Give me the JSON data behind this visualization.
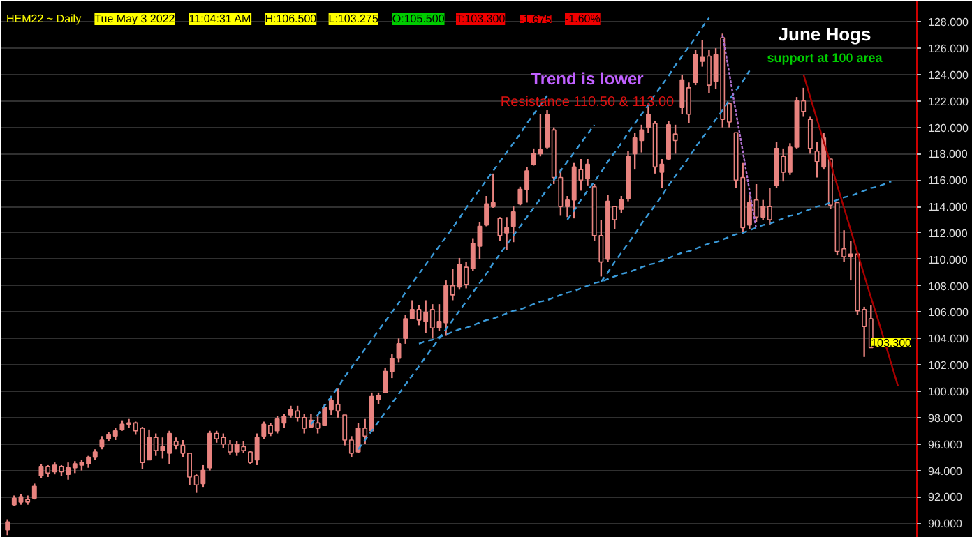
{
  "chart_data": {
    "type": "candlestick",
    "color": "#e8837f",
    "categories": [
      null,
      null,
      null,
      null,
      null,
      null,
      null,
      null,
      null,
      null,
      null,
      null,
      null,
      null,
      null,
      null,
      null,
      null,
      null,
      null,
      null,
      null,
      null,
      null,
      null,
      null,
      null,
      null,
      null,
      null,
      null,
      null,
      null,
      null,
      null,
      null,
      null,
      null,
      null,
      null,
      null,
      null,
      null,
      null,
      null,
      null,
      null,
      null,
      null,
      null,
      null,
      null,
      null,
      null,
      null,
      null,
      null,
      null,
      null,
      null,
      null,
      null,
      null,
      null,
      null,
      null,
      null,
      null,
      null,
      null,
      null,
      null,
      null,
      null,
      null,
      null,
      null,
      null,
      null,
      null,
      null,
      null,
      null,
      null,
      null,
      null,
      null,
      null,
      null,
      null,
      null,
      null,
      null,
      null,
      null,
      null,
      null,
      null,
      null,
      null,
      null,
      null,
      null,
      null,
      null,
      null,
      null,
      null,
      null,
      null,
      null,
      null,
      null,
      null,
      null,
      null,
      null,
      null,
      null,
      null,
      null,
      null,
      null,
      null,
      null,
      null,
      null,
      null,
      null,
      null,
      null,
      null,
      null
    ],
    "ohlc": [
      [
        89.5,
        90.3,
        89.1,
        90.1
      ],
      [
        91.4,
        92.1,
        91.3,
        91.9
      ],
      [
        91.6,
        92.2,
        91.4,
        92.0
      ],
      [
        91.8,
        92.1,
        91.4,
        91.6
      ],
      [
        91.9,
        93.0,
        91.8,
        92.8
      ],
      [
        93.6,
        94.5,
        93.4,
        94.3
      ],
      [
        94.3,
        94.4,
        93.5,
        93.8
      ],
      [
        93.9,
        94.6,
        93.7,
        94.4
      ],
      [
        94.3,
        94.4,
        93.6,
        93.9
      ],
      [
        93.7,
        94.6,
        93.3,
        94.2
      ],
      [
        94.2,
        94.7,
        93.8,
        94.5
      ],
      [
        94.4,
        94.8,
        94.0,
        94.6
      ],
      [
        94.5,
        95.1,
        94.2,
        95.0
      ],
      [
        95.0,
        95.6,
        94.8,
        95.4
      ],
      [
        95.8,
        96.6,
        95.6,
        96.3
      ],
      [
        96.4,
        96.9,
        96.2,
        96.7
      ],
      [
        96.6,
        97.2,
        96.3,
        97.0
      ],
      [
        97.1,
        97.8,
        97.0,
        97.5
      ],
      [
        97.5,
        97.9,
        97.2,
        97.6
      ],
      [
        97.6,
        97.7,
        96.7,
        97.0
      ],
      [
        97.2,
        97.3,
        94.1,
        94.6
      ],
      [
        94.8,
        97.1,
        94.8,
        96.5
      ],
      [
        96.5,
        96.8,
        95.1,
        95.5
      ],
      [
        95.5,
        96.5,
        94.9,
        95.8
      ],
      [
        95.3,
        97.0,
        94.5,
        96.8
      ],
      [
        96.2,
        96.5,
        95.6,
        95.9
      ],
      [
        95.9,
        96.3,
        95.0,
        95.3
      ],
      [
        95.3,
        95.3,
        92.9,
        93.5
      ],
      [
        93.6,
        93.7,
        92.3,
        92.9
      ],
      [
        93.0,
        94.4,
        92.7,
        94.0
      ],
      [
        94.2,
        97.0,
        94.0,
        96.8
      ],
      [
        96.8,
        97.0,
        96.1,
        96.4
      ],
      [
        96.5,
        96.8,
        95.7,
        96.0
      ],
      [
        96.0,
        96.3,
        95.2,
        95.4
      ],
      [
        95.4,
        96.2,
        95.1,
        96.0
      ],
      [
        95.8,
        96.2,
        95.3,
        95.5
      ],
      [
        95.4,
        95.5,
        94.5,
        94.6
      ],
      [
        94.8,
        96.8,
        94.4,
        96.5
      ],
      [
        96.6,
        97.7,
        96.4,
        97.5
      ],
      [
        97.4,
        97.6,
        96.6,
        96.8
      ],
      [
        97.0,
        98.1,
        96.8,
        97.9
      ],
      [
        97.6,
        98.3,
        97.2,
        98.1
      ],
      [
        98.2,
        98.9,
        98.0,
        98.6
      ],
      [
        98.5,
        98.9,
        97.7,
        98.0
      ],
      [
        98.0,
        98.3,
        96.8,
        97.2
      ],
      [
        97.3,
        98.3,
        97.2,
        97.8
      ],
      [
        97.6,
        98.3,
        96.8,
        97.2
      ],
      [
        97.4,
        99.0,
        97.4,
        98.8
      ],
      [
        98.6,
        99.6,
        98.2,
        99.3
      ],
      [
        99.0,
        100.2,
        98.0,
        98.5
      ],
      [
        98.2,
        98.2,
        95.9,
        96.3
      ],
      [
        96.3,
        96.6,
        95.0,
        95.3
      ],
      [
        95.4,
        97.6,
        95.3,
        97.2
      ],
      [
        97.2,
        97.9,
        96.0,
        96.6
      ],
      [
        97.0,
        99.9,
        97.0,
        99.6
      ],
      [
        99.4,
        99.9,
        99.0,
        99.7
      ],
      [
        99.9,
        101.8,
        99.9,
        101.5
      ],
      [
        101.5,
        102.8,
        101.0,
        102.5
      ],
      [
        102.5,
        104.0,
        102.2,
        103.6
      ],
      [
        104.0,
        105.8,
        103.6,
        105.5
      ],
      [
        105.5,
        106.9,
        105.5,
        106.2
      ],
      [
        106.2,
        106.5,
        105.0,
        105.4
      ],
      [
        105.3,
        106.9,
        104.4,
        106.0
      ],
      [
        106.2,
        106.6,
        104.0,
        104.8
      ],
      [
        104.8,
        106.6,
        104.6,
        105.3
      ],
      [
        105.2,
        108.4,
        104.2,
        108.0
      ],
      [
        108.0,
        109.3,
        106.9,
        107.3
      ],
      [
        107.9,
        110.1,
        107.7,
        109.6
      ],
      [
        109.4,
        109.8,
        107.8,
        108.1
      ],
      [
        109.3,
        111.6,
        109.1,
        111.2
      ],
      [
        111.0,
        112.8,
        110.0,
        112.5
      ],
      [
        112.6,
        114.8,
        112.5,
        114.2
      ],
      [
        114.0,
        116.5,
        113.9,
        114.3
      ],
      [
        113.1,
        113.2,
        111.4,
        111.8
      ],
      [
        112.0,
        113.2,
        110.7,
        112.4
      ],
      [
        112.5,
        114.0,
        111.3,
        113.6
      ],
      [
        114.2,
        115.5,
        114.1,
        115.3
      ],
      [
        115.3,
        117.0,
        114.3,
        116.7
      ],
      [
        117.2,
        118.4,
        117.1,
        118.0
      ],
      [
        118.0,
        121.0,
        117.8,
        118.3
      ],
      [
        118.5,
        121.3,
        118.4,
        121.0
      ],
      [
        119.8,
        120.0,
        115.7,
        116.2
      ],
      [
        116.2,
        116.8,
        113.3,
        114.0
      ],
      [
        114.0,
        114.8,
        113.2,
        114.5
      ],
      [
        114.5,
        117.3,
        113.1,
        117.0
      ],
      [
        116.8,
        117.6,
        115.2,
        116.0
      ],
      [
        116.1,
        117.6,
        115.6,
        117.2
      ],
      [
        115.5,
        115.7,
        111.4,
        111.8
      ],
      [
        111.8,
        113.0,
        108.7,
        109.8
      ],
      [
        110.0,
        114.9,
        109.8,
        114.4
      ],
      [
        114.0,
        114.0,
        112.3,
        113.0
      ],
      [
        113.8,
        114.8,
        113.5,
        114.5
      ],
      [
        114.6,
        118.2,
        114.4,
        117.8
      ],
      [
        118.0,
        119.6,
        116.8,
        119.2
      ],
      [
        119.0,
        120.2,
        118.1,
        119.8
      ],
      [
        120.0,
        121.6,
        119.6,
        121.0
      ],
      [
        120.3,
        120.5,
        116.5,
        117.0
      ],
      [
        116.6,
        117.6,
        115.4,
        117.2
      ],
      [
        117.6,
        120.5,
        117.5,
        120.2
      ],
      [
        119.5,
        120.2,
        118.0,
        119.0
      ],
      [
        121.5,
        124.0,
        121.0,
        123.6
      ],
      [
        123.0,
        123.4,
        120.3,
        121.0
      ],
      [
        123.4,
        125.9,
        123.2,
        125.5
      ],
      [
        125.0,
        126.6,
        124.6,
        125.3
      ],
      [
        125.4,
        125.9,
        122.6,
        123.2
      ],
      [
        123.5,
        126.0,
        122.9,
        125.5
      ],
      [
        126.8,
        127.1,
        120.0,
        120.6
      ],
      [
        121.8,
        121.9,
        120.0,
        120.4
      ],
      [
        119.6,
        119.6,
        115.4,
        116.0
      ],
      [
        116.2,
        117.3,
        112.0,
        112.4
      ],
      [
        112.6,
        114.9,
        112.3,
        114.3
      ],
      [
        114.5,
        115.7,
        112.8,
        113.2
      ],
      [
        113.2,
        114.5,
        113.0,
        114.0
      ],
      [
        114.0,
        115.4,
        112.6,
        113.0
      ],
      [
        115.6,
        118.9,
        115.4,
        118.4
      ],
      [
        117.8,
        118.4,
        115.9,
        116.6
      ],
      [
        116.6,
        118.8,
        116.4,
        118.5
      ],
      [
        118.5,
        122.3,
        118.4,
        122.0
      ],
      [
        122.0,
        123.0,
        120.8,
        121.2
      ],
      [
        120.6,
        120.8,
        118.0,
        118.4
      ],
      [
        118.2,
        118.9,
        116.2,
        117.4
      ],
      [
        117.0,
        119.6,
        116.8,
        119.2
      ],
      [
        117.6,
        117.6,
        113.8,
        114.1
      ],
      [
        114.3,
        114.3,
        110.3,
        110.6
      ],
      [
        110.8,
        112.2,
        109.8,
        110.2
      ],
      [
        110.2,
        111.4,
        108.4,
        110.4
      ],
      [
        110.4,
        110.5,
        105.8,
        106.1
      ],
      [
        106.2,
        106.4,
        102.6,
        104.9
      ],
      [
        105.5,
        106.5,
        103.275,
        103.3
      ],
      null,
      null,
      null,
      null
    ],
    "series": [
      {
        "type": "line",
        "color": "#3a9ad9",
        "line_style": "dashed",
        "values": [
          null,
          null,
          null,
          null,
          null,
          null,
          null,
          null,
          null,
          null,
          null,
          null,
          null,
          null,
          null,
          null,
          null,
          null,
          null,
          null,
          null,
          null,
          null,
          null,
          null,
          null,
          null,
          null,
          null,
          null,
          null,
          null,
          null,
          null,
          null,
          null,
          null,
          null,
          null,
          null,
          null,
          null,
          null,
          null,
          null,
          97.5,
          98.2,
          98.9,
          99.6,
          100.3,
          101.1,
          101.8,
          102.5,
          103.2,
          103.9,
          104.6,
          105.3,
          106.0,
          106.7,
          107.5,
          108.2,
          108.9,
          109.6,
          110.3,
          111.0,
          111.7,
          112.4,
          113.1,
          113.9,
          114.6,
          115.3,
          116.0,
          116.7,
          117.4,
          118.1,
          118.8,
          119.5,
          120.3,
          121.0,
          121.7,
          122.4,
          null,
          null,
          null,
          null,
          null,
          null,
          null,
          null,
          null,
          null,
          null,
          null,
          null,
          null,
          null,
          null,
          null,
          null,
          null,
          null,
          null,
          null,
          null,
          null,
          null,
          null,
          null,
          null,
          null,
          null,
          null,
          null,
          null,
          null,
          null,
          null,
          null,
          null,
          null,
          null,
          null,
          null,
          null,
          null,
          null,
          null,
          null,
          null,
          null,
          null,
          null,
          null
        ]
      },
      {
        "type": "line",
        "color": "#3a9ad9",
        "line_style": "dashed",
        "values": [
          null,
          null,
          null,
          null,
          null,
          null,
          null,
          null,
          null,
          null,
          null,
          null,
          null,
          null,
          null,
          null,
          null,
          null,
          null,
          null,
          null,
          null,
          null,
          null,
          null,
          null,
          null,
          null,
          null,
          null,
          null,
          null,
          null,
          null,
          null,
          null,
          null,
          null,
          null,
          null,
          null,
          null,
          null,
          null,
          null,
          null,
          null,
          null,
          null,
          null,
          null,
          null,
          95.6,
          96.3,
          97.0,
          97.7,
          98.4,
          99.1,
          99.8,
          100.5,
          101.2,
          101.9,
          102.6,
          103.3,
          104.0,
          104.7,
          105.4,
          106.1,
          106.8,
          107.5,
          108.2,
          108.9,
          109.7,
          110.4,
          111.1,
          111.8,
          112.5,
          113.2,
          113.9,
          114.6,
          115.3,
          116.0,
          116.7,
          117.4,
          118.1,
          118.8,
          119.5,
          120.2,
          null,
          null,
          null,
          null,
          null,
          null,
          null,
          null,
          null,
          null,
          null,
          null,
          null,
          null,
          null,
          null,
          null,
          null,
          null,
          null,
          null,
          null,
          null,
          null,
          null,
          null,
          null,
          null,
          null,
          null,
          null,
          null,
          null,
          null,
          null,
          null,
          null,
          null,
          null,
          null,
          null,
          null,
          null,
          null,
          null
        ]
      },
      {
        "type": "line",
        "color": "#3a9ad9",
        "line_style": "dashed",
        "values": [
          null,
          null,
          null,
          null,
          null,
          null,
          null,
          null,
          null,
          null,
          null,
          null,
          null,
          null,
          null,
          null,
          null,
          null,
          null,
          null,
          null,
          null,
          null,
          null,
          null,
          null,
          null,
          null,
          null,
          null,
          null,
          null,
          null,
          null,
          null,
          null,
          null,
          null,
          null,
          null,
          null,
          null,
          null,
          null,
          null,
          null,
          null,
          null,
          null,
          null,
          null,
          null,
          null,
          null,
          null,
          null,
          null,
          null,
          null,
          null,
          null,
          null,
          null,
          null,
          null,
          null,
          null,
          null,
          null,
          null,
          null,
          null,
          null,
          null,
          null,
          null,
          null,
          null,
          null,
          null,
          null,
          null,
          null,
          113.0,
          113.7,
          114.5,
          115.2,
          115.9,
          116.6,
          117.4,
          118.1,
          118.8,
          119.6,
          120.3,
          121.0,
          121.7,
          122.5,
          123.2,
          123.9,
          124.7,
          125.4,
          126.1,
          126.8,
          127.6,
          128.3,
          null,
          null,
          null,
          null,
          null,
          null,
          null,
          null,
          null,
          null,
          null,
          null,
          null,
          null,
          null,
          null,
          null,
          null,
          null,
          null,
          null,
          null,
          null,
          null,
          null,
          null,
          null,
          null
        ]
      },
      {
        "type": "line",
        "color": "#3a9ad9",
        "line_style": "dashed",
        "values": [
          null,
          null,
          null,
          null,
          null,
          null,
          null,
          null,
          null,
          null,
          null,
          null,
          null,
          null,
          null,
          null,
          null,
          null,
          null,
          null,
          null,
          null,
          null,
          null,
          null,
          null,
          null,
          null,
          null,
          null,
          null,
          null,
          null,
          null,
          null,
          null,
          null,
          null,
          null,
          null,
          null,
          null,
          null,
          null,
          null,
          null,
          null,
          null,
          null,
          null,
          null,
          null,
          null,
          null,
          null,
          null,
          null,
          null,
          null,
          null,
          null,
          null,
          null,
          null,
          null,
          null,
          null,
          null,
          null,
          null,
          null,
          null,
          null,
          null,
          null,
          null,
          null,
          null,
          null,
          null,
          null,
          null,
          null,
          null,
          null,
          null,
          null,
          null,
          108.3,
          109.0,
          109.8,
          110.5,
          111.2,
          111.9,
          112.7,
          113.4,
          114.1,
          114.8,
          115.6,
          116.3,
          117.0,
          117.7,
          118.5,
          119.2,
          119.9,
          120.6,
          121.3,
          122.1,
          122.8,
          123.5,
          124.3,
          null,
          null,
          null,
          null,
          null,
          null,
          null,
          null,
          null,
          null,
          null,
          null,
          null,
          null,
          null,
          null,
          null,
          null,
          null,
          null,
          null,
          null
        ]
      },
      {
        "type": "line",
        "color": "#3a9ad9",
        "line_style": "dashed",
        "values": [
          null,
          null,
          null,
          null,
          null,
          null,
          null,
          null,
          null,
          null,
          null,
          null,
          null,
          null,
          null,
          null,
          null,
          null,
          null,
          null,
          null,
          null,
          null,
          null,
          null,
          null,
          null,
          null,
          null,
          null,
          null,
          null,
          null,
          null,
          null,
          null,
          null,
          null,
          null,
          null,
          null,
          null,
          null,
          null,
          null,
          null,
          null,
          null,
          null,
          null,
          null,
          null,
          null,
          null,
          null,
          null,
          null,
          null,
          null,
          null,
          null,
          103.6,
          103.8,
          103.9,
          104.1,
          104.3,
          104.5,
          104.7,
          104.8,
          105.0,
          105.2,
          105.4,
          105.5,
          105.7,
          105.9,
          106.1,
          106.2,
          106.4,
          106.6,
          106.8,
          106.9,
          107.1,
          107.3,
          107.5,
          107.6,
          107.8,
          108.0,
          108.2,
          108.3,
          108.5,
          108.7,
          108.9,
          109.0,
          109.2,
          109.4,
          109.6,
          109.7,
          109.9,
          110.1,
          110.3,
          110.5,
          110.6,
          110.8,
          111.0,
          111.2,
          111.3,
          111.5,
          111.7,
          111.9,
          112.0,
          112.2,
          112.4,
          112.6,
          112.7,
          112.9,
          113.1,
          113.3,
          113.4,
          113.6,
          113.8,
          114.0,
          114.1,
          114.3,
          114.5,
          114.7,
          114.8,
          115.0,
          115.2,
          115.4,
          115.5,
          115.7,
          115.9,
          null
        ]
      },
      {
        "type": "line",
        "color": "#aa0000",
        "line_style": "solid",
        "values": [
          null,
          null,
          null,
          null,
          null,
          null,
          null,
          null,
          null,
          null,
          null,
          null,
          null,
          null,
          null,
          null,
          null,
          null,
          null,
          null,
          null,
          null,
          null,
          null,
          null,
          null,
          null,
          null,
          null,
          null,
          null,
          null,
          null,
          null,
          null,
          null,
          null,
          null,
          null,
          null,
          null,
          null,
          null,
          null,
          null,
          null,
          null,
          null,
          null,
          null,
          null,
          null,
          null,
          null,
          null,
          null,
          null,
          null,
          null,
          null,
          null,
          null,
          null,
          null,
          null,
          null,
          null,
          null,
          null,
          null,
          null,
          null,
          null,
          null,
          null,
          null,
          null,
          null,
          null,
          null,
          null,
          null,
          null,
          null,
          null,
          null,
          null,
          null,
          null,
          null,
          null,
          null,
          null,
          null,
          null,
          null,
          null,
          null,
          null,
          null,
          null,
          null,
          null,
          null,
          null,
          null,
          null,
          null,
          null,
          null,
          null,
          null,
          null,
          null,
          null,
          null,
          null,
          null,
          124.0,
          122.3,
          120.6,
          118.9,
          117.3,
          115.6,
          113.9,
          112.2,
          110.5,
          108.8,
          107.1,
          105.5,
          103.8,
          102.1,
          100.4
        ]
      },
      {
        "type": "line",
        "color": "#b070d0",
        "line_style": "dotted",
        "values": [
          null,
          null,
          null,
          null,
          null,
          null,
          null,
          null,
          null,
          null,
          null,
          null,
          null,
          null,
          null,
          null,
          null,
          null,
          null,
          null,
          null,
          null,
          null,
          null,
          null,
          null,
          null,
          null,
          null,
          null,
          null,
          null,
          null,
          null,
          null,
          null,
          null,
          null,
          null,
          null,
          null,
          null,
          null,
          null,
          null,
          null,
          null,
          null,
          null,
          null,
          null,
          null,
          null,
          null,
          null,
          null,
          null,
          null,
          null,
          null,
          null,
          null,
          null,
          null,
          null,
          null,
          null,
          null,
          null,
          null,
          null,
          null,
          null,
          null,
          null,
          null,
          null,
          null,
          null,
          null,
          null,
          null,
          null,
          null,
          null,
          null,
          null,
          null,
          null,
          null,
          null,
          null,
          null,
          null,
          null,
          null,
          null,
          null,
          null,
          null,
          null,
          null,
          null,
          null,
          null,
          null,
          127.0,
          124.1,
          121.1,
          118.2,
          115.2,
          112.3,
          null,
          null,
          null,
          null,
          null,
          null,
          null,
          null,
          null,
          null,
          null,
          null,
          null,
          null,
          null,
          null,
          null,
          null,
          null,
          null,
          null
        ]
      }
    ],
    "ylim": [
      88.9,
      129.6
    ],
    "yticks": [
      {
        "value": 90,
        "label": "90.000"
      },
      {
        "value": 92,
        "label": "92.000"
      },
      {
        "value": 94,
        "label": "94.000"
      },
      {
        "value": 96,
        "label": "96.000"
      },
      {
        "value": 98,
        "label": "98.000"
      },
      {
        "value": 100,
        "label": "100.000"
      },
      {
        "value": 102,
        "label": "102.000"
      },
      {
        "value": 104,
        "label": "104.000"
      },
      {
        "value": 106,
        "label": "106.000"
      },
      {
        "value": 108,
        "label": "108.000"
      },
      {
        "value": 110,
        "label": "110.000"
      },
      {
        "value": 112,
        "label": "112.000"
      },
      {
        "value": 114,
        "label": "114.000"
      },
      {
        "value": 116,
        "label": "116.000"
      },
      {
        "value": 118,
        "label": "118.000"
      },
      {
        "value": 120,
        "label": "120.000"
      },
      {
        "value": 122,
        "label": "122.000"
      },
      {
        "value": 124,
        "label": "124.000"
      },
      {
        "value": 126,
        "label": "126.000"
      },
      {
        "value": 128,
        "label": "128.000"
      }
    ],
    "grid": "y",
    "tick_labels": "y",
    "annotations": [
      "HEM22 ~ Daily",
      "Tue May 3 2022",
      "11:04:31 AM",
      "H:106.500",
      "L:103.275",
      "O:105.500",
      "T:103.300",
      "-1.675",
      "-1.60%",
      "Trend is lower",
      "Resistance 110.50 & 113.00",
      "June Hogs",
      "support at 100 area",
      "103.300"
    ]
  }
}
